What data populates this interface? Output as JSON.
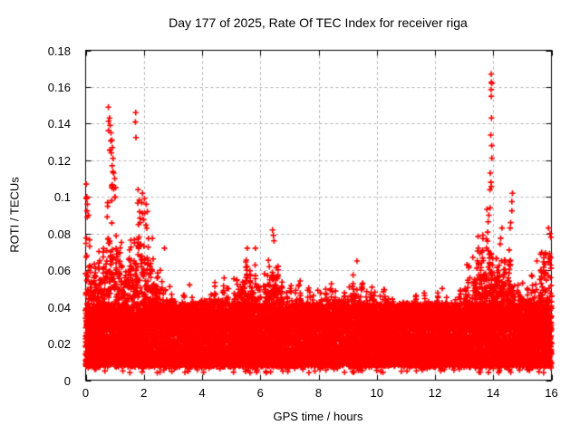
{
  "chart_data": {
    "type": "scatter",
    "title": "Day 177 of 2025, Rate Of TEC Index for receiver riga",
    "xlabel": "GPS time / hours",
    "ylabel": "ROTI / TECUs",
    "xlim": [
      0,
      16
    ],
    "ylim": [
      0,
      0.18
    ],
    "xticks": [
      0,
      2,
      4,
      6,
      8,
      10,
      12,
      14,
      16
    ],
    "xtick_labels": [
      "0",
      "2",
      "4",
      "6",
      "8",
      "10",
      "12",
      "14",
      "16"
    ],
    "yticks": [
      0,
      0.02,
      0.04,
      0.06,
      0.08,
      0.1,
      0.12,
      0.14,
      0.16,
      0.18
    ],
    "ytick_labels": [
      "0",
      "0.02",
      "0.04",
      "0.06",
      "0.08",
      "0.1",
      "0.12",
      "0.14",
      "0.16",
      "0.18"
    ],
    "grid": true,
    "legend": "none",
    "marker": "plus",
    "marker_color": "#ff0000",
    "grid_color": "#b0b0b0",
    "axis_color": "#000000",
    "background_color": "#ffffff",
    "baseline_band": {
      "y_min": 0.008,
      "y_max": 0.038,
      "note": "dense band of points present at all hours"
    },
    "envelope_hours_step": 0.25,
    "envelope": [
      0.095,
      0.075,
      0.08,
      0.105,
      0.105,
      0.075,
      0.085,
      0.105,
      0.1,
      0.085,
      0.068,
      0.062,
      0.05,
      0.05,
      0.047,
      0.046,
      0.048,
      0.052,
      0.055,
      0.058,
      0.06,
      0.066,
      0.073,
      0.071,
      0.06,
      0.068,
      0.08,
      0.062,
      0.056,
      0.058,
      0.052,
      0.051,
      0.054,
      0.061,
      0.057,
      0.051,
      0.054,
      0.064,
      0.055,
      0.056,
      0.051,
      0.054,
      0.05,
      0.046,
      0.045,
      0.048,
      0.051,
      0.05,
      0.048,
      0.05,
      0.045,
      0.049,
      0.06,
      0.066,
      0.085,
      0.105,
      0.085,
      0.078,
      0.086,
      0.06,
      0.056,
      0.058,
      0.064,
      0.085
    ],
    "outliers": [
      [
        0.02,
        0.107
      ],
      [
        0.04,
        0.1
      ],
      [
        0.06,
        0.096
      ],
      [
        0.1,
        0.09
      ],
      [
        0.78,
        0.149
      ],
      [
        0.82,
        0.143
      ],
      [
        0.84,
        0.139
      ],
      [
        0.87,
        0.135
      ],
      [
        0.9,
        0.131
      ],
      [
        0.92,
        0.127
      ],
      [
        0.88,
        0.124
      ],
      [
        0.94,
        0.121
      ],
      [
        0.91,
        0.117
      ],
      [
        0.96,
        0.113
      ],
      [
        1.0,
        0.11
      ],
      [
        1.03,
        0.105
      ],
      [
        0.9,
        0.105
      ],
      [
        1.72,
        0.146
      ],
      [
        1.8,
        0.104
      ],
      [
        1.95,
        0.102
      ],
      [
        2.02,
        0.099
      ],
      [
        2.08,
        0.096
      ],
      [
        2.12,
        0.092
      ],
      [
        2.71,
        0.072
      ],
      [
        3.57,
        0.052
      ],
      [
        5.55,
        0.072
      ],
      [
        5.83,
        0.072
      ],
      [
        6.42,
        0.082
      ],
      [
        6.45,
        0.079
      ],
      [
        6.47,
        0.076
      ],
      [
        9.32,
        0.065
      ],
      [
        12.25,
        0.05
      ],
      [
        13.1,
        0.063
      ],
      [
        13.3,
        0.067
      ],
      [
        13.93,
        0.167
      ],
      [
        13.95,
        0.162
      ],
      [
        13.94,
        0.143
      ],
      [
        13.95,
        0.128
      ],
      [
        13.9,
        0.113
      ],
      [
        13.92,
        0.108
      ],
      [
        13.89,
        0.094
      ],
      [
        13.85,
        0.09
      ],
      [
        14.66,
        0.102
      ],
      [
        14.6,
        0.086
      ],
      [
        14.58,
        0.083
      ],
      [
        14.3,
        0.083
      ],
      [
        15.5,
        0.065
      ],
      [
        15.9,
        0.083
      ],
      [
        15.95,
        0.08
      ],
      [
        15.98,
        0.078
      ]
    ]
  }
}
